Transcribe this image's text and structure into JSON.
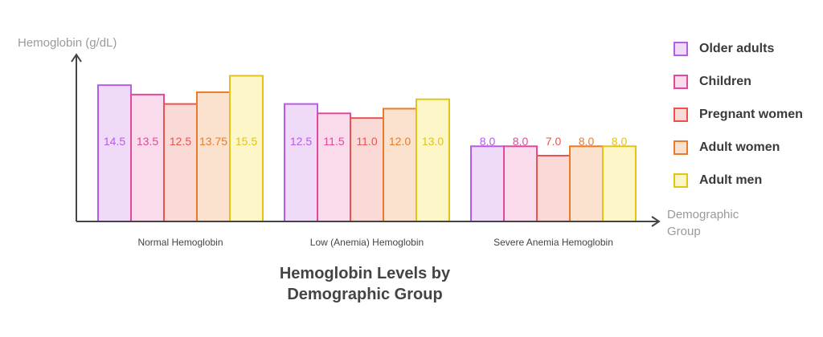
{
  "chart_data": {
    "type": "bar",
    "title": "Hemoglobin Levels by Demographic Group",
    "ylabel": "Hemoglobin (g/dL)",
    "xlabel": "Demographic Group",
    "ylim": [
      0,
      17.5
    ],
    "grid": false,
    "legend_position": "right",
    "categories": [
      "Normal Hemoglobin",
      "Low (Anemia) Hemoglobin",
      "Severe Anemia Hemoglobin"
    ],
    "series": [
      {
        "name": "Older adults",
        "values": [
          14.5,
          12.5,
          8.0
        ],
        "labels": [
          "14.5",
          "12.5",
          "8.0"
        ],
        "color": "#b65ce8",
        "fill": "#efdaf7"
      },
      {
        "name": "Children",
        "values": [
          13.5,
          11.5,
          8.0
        ],
        "labels": [
          "13.5",
          "11.5",
          "8.0"
        ],
        "color": "#e2499a",
        "fill": "#fadbec"
      },
      {
        "name": "Pregnant women",
        "values": [
          12.5,
          11.0,
          7.0
        ],
        "labels": [
          "12.5",
          "11.0",
          "7.0"
        ],
        "color": "#e9534e",
        "fill": "#fadad6"
      },
      {
        "name": "Adult women",
        "values": [
          13.75,
          12.0,
          8.0
        ],
        "labels": [
          "13.75",
          "12.0",
          "8.0"
        ],
        "color": "#ea7b2b",
        "fill": "#fbe2cf"
      },
      {
        "name": "Adult men",
        "values": [
          15.5,
          13.0,
          8.0
        ],
        "labels": [
          "15.5",
          "13.0",
          "8.0"
        ],
        "color": "#e2c418",
        "fill": "#fcf6c8"
      }
    ]
  }
}
